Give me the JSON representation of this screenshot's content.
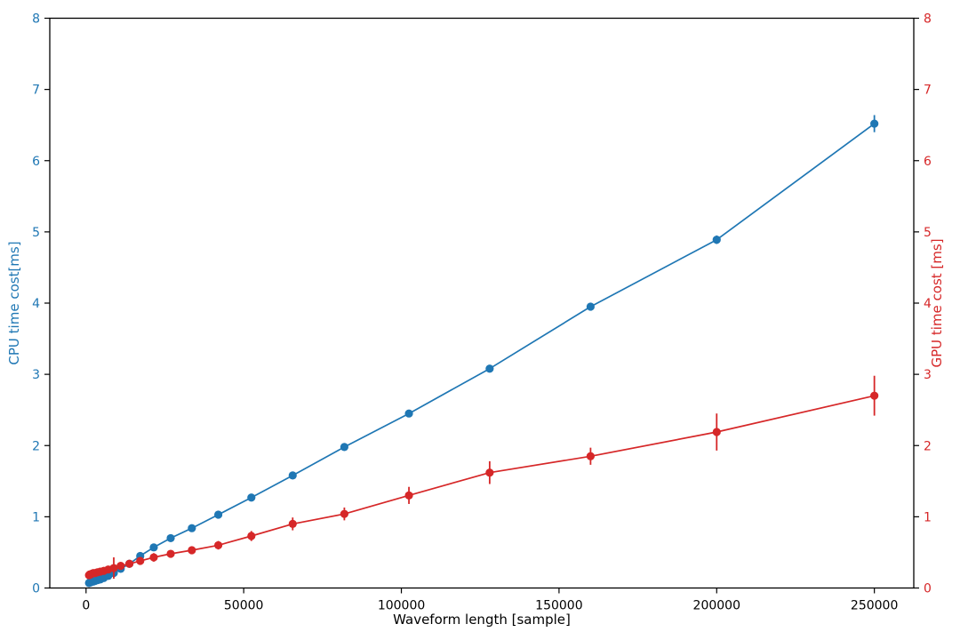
{
  "figure": {
    "background": "#ffffff"
  },
  "chart_data": {
    "type": "line",
    "title": "",
    "xlabel": "Waveform length [sample]",
    "ylabel_left": "CPU time cost[ms]",
    "ylabel_right": "GPU time cost [ms]",
    "xlim": [
      -11500,
      262500
    ],
    "ylim_left": [
      0,
      8
    ],
    "ylim_right": [
      0,
      8
    ],
    "grid": false,
    "legend": "none",
    "x_ticks": [
      0,
      50000,
      100000,
      150000,
      200000,
      250000
    ],
    "y_ticks_left": [
      0,
      1,
      2,
      3,
      4,
      5,
      6,
      7,
      8
    ],
    "y_ticks_right": [
      0,
      1,
      2,
      3,
      4,
      5,
      6,
      7,
      8
    ],
    "axis_color_left": "#1f77b4",
    "axis_color_right": "#d62728",
    "spine_color": "#000000",
    "x": [
      945,
      1181,
      1476,
      1845,
      2306,
      2882,
      3603,
      4504,
      5630,
      7037,
      8796,
      10995,
      13744,
      17180,
      21475,
      26844,
      33554,
      41943,
      52429,
      65536,
      81920,
      102400,
      128000,
      160000,
      200000,
      250000
    ],
    "series": [
      {
        "name": "CPU time cost",
        "axis": "left",
        "color": "#1f77b4",
        "marker": "o",
        "values": [
          0.07,
          0.08,
          0.08,
          0.09,
          0.09,
          0.1,
          0.11,
          0.12,
          0.14,
          0.17,
          0.21,
          0.27,
          0.34,
          0.45,
          0.57,
          0.7,
          0.84,
          1.03,
          1.27,
          1.58,
          1.98,
          2.45,
          3.08,
          3.95,
          4.89,
          6.52
        ],
        "errors": [
          0.01,
          0.01,
          0.01,
          0.01,
          0.01,
          0.01,
          0.01,
          0.01,
          0.01,
          0.02,
          0.02,
          0.02,
          0.02,
          0.02,
          0.02,
          0.02,
          0.03,
          0.03,
          0.03,
          0.03,
          0.04,
          0.04,
          0.05,
          0.05,
          0.06,
          0.12
        ]
      },
      {
        "name": "GPU time cost",
        "axis": "right",
        "color": "#d62728",
        "marker": "o",
        "values": [
          0.18,
          0.19,
          0.19,
          0.2,
          0.21,
          0.21,
          0.22,
          0.23,
          0.24,
          0.26,
          0.28,
          0.31,
          0.34,
          0.38,
          0.43,
          0.48,
          0.53,
          0.6,
          0.73,
          0.9,
          1.04,
          1.3,
          1.62,
          1.85,
          2.19,
          2.7
        ],
        "errors": [
          0.03,
          0.03,
          0.03,
          0.03,
          0.03,
          0.03,
          0.03,
          0.04,
          0.04,
          0.05,
          0.15,
          0.05,
          0.05,
          0.05,
          0.06,
          0.05,
          0.05,
          0.06,
          0.07,
          0.09,
          0.09,
          0.12,
          0.16,
          0.12,
          0.26,
          0.28
        ]
      }
    ]
  }
}
